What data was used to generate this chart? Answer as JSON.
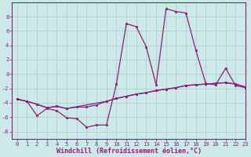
{
  "line1_x": [
    0,
    1,
    2,
    3,
    4,
    5,
    6,
    7,
    8,
    9,
    10,
    11,
    12,
    13,
    14,
    15,
    16,
    17,
    18,
    19,
    20,
    21,
    22,
    23
  ],
  "line1_y": [
    -3.5,
    -3.8,
    -5.8,
    -4.8,
    -5.1,
    -6.1,
    -6.2,
    -7.4,
    -7.1,
    -7.1,
    -1.4,
    7.0,
    6.6,
    3.8,
    -1.5,
    9.1,
    8.7,
    8.5,
    3.3,
    -1.3,
    -1.5,
    0.8,
    -1.6,
    -1.9
  ],
  "line2_x": [
    0,
    1,
    2,
    3,
    4,
    5,
    6,
    7,
    8,
    9,
    10,
    11,
    12,
    13,
    14,
    15,
    16,
    17,
    18,
    19,
    20,
    21,
    22,
    23
  ],
  "line2_y": [
    -3.5,
    -3.8,
    -4.2,
    -4.7,
    -4.5,
    -4.8,
    -4.6,
    -4.6,
    -4.3,
    -3.8,
    -3.4,
    -3.1,
    -2.8,
    -2.6,
    -2.3,
    -2.1,
    -1.9,
    -1.6,
    -1.5,
    -1.4,
    -1.3,
    -1.2,
    -1.4,
    -1.8
  ],
  "line3_x": [
    0,
    1,
    2,
    3,
    4,
    5,
    9,
    10,
    11,
    12,
    13,
    14,
    15,
    16,
    17,
    18,
    19,
    20,
    21,
    22,
    23
  ],
  "line3_y": [
    -3.5,
    -3.8,
    -4.2,
    -4.7,
    -4.5,
    -4.8,
    -3.8,
    -3.4,
    -3.1,
    -2.8,
    -2.6,
    -2.3,
    -2.1,
    -1.9,
    -1.6,
    -1.5,
    -1.4,
    -1.3,
    -1.2,
    -1.4,
    -1.8
  ],
  "line_color": "#882277",
  "bg_color": "#cce8e8",
  "grid_color": "#aacccc",
  "axis_color": "#882277",
  "ylim": [
    -9,
    10
  ],
  "xlim": [
    -0.5,
    23
  ],
  "yticks": [
    -8,
    -6,
    -4,
    -2,
    0,
    2,
    4,
    6,
    8
  ],
  "xticks": [
    0,
    1,
    2,
    3,
    4,
    5,
    6,
    7,
    8,
    9,
    10,
    11,
    12,
    13,
    14,
    15,
    16,
    17,
    18,
    19,
    20,
    21,
    22,
    23
  ],
  "xlabel": "Windchill (Refroidissement éolien,°C)",
  "markersize": 2.0,
  "linewidth": 0.9,
  "xlabel_fontsize": 6.0,
  "tick_fontsize": 5.0
}
